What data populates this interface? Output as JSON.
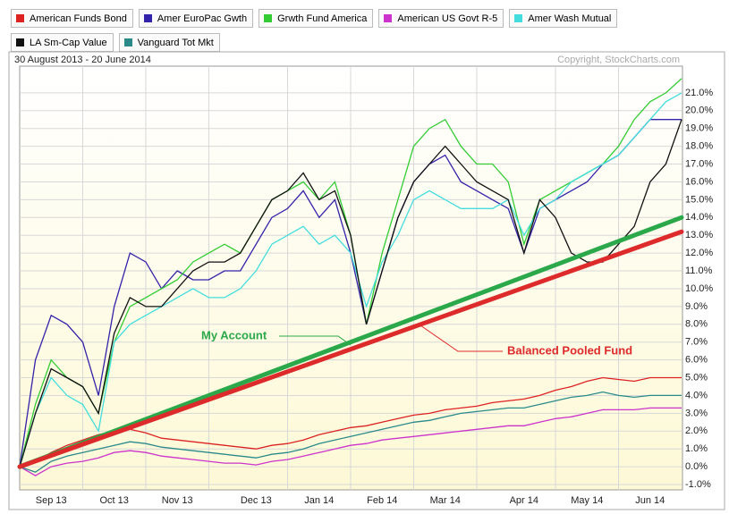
{
  "chart_data": {
    "type": "line",
    "subtitle": "30 August 2013 - 20 June 2014",
    "source": "Copyright, StockCharts.com",
    "categories": [
      null,
      null,
      "Sep 13",
      null,
      null,
      null,
      "Oct 13",
      null,
      null,
      null,
      "Nov 13",
      null,
      null,
      null,
      null,
      "Dec 13",
      null,
      null,
      null,
      "Jan 14",
      null,
      null,
      null,
      "Feb 14",
      null,
      null,
      null,
      "Mar 14",
      null,
      null,
      null,
      null,
      "Apr 14",
      null,
      null,
      null,
      "May 14",
      null,
      null,
      null,
      "Jun 14",
      null,
      null
    ],
    "series": [
      {
        "name": "American Funds Bond",
        "color": "#dd2222",
        "values": [
          0,
          0.3,
          0.8,
          1.2,
          1.5,
          1.8,
          2.0,
          2.1,
          1.9,
          1.6,
          1.5,
          1.4,
          1.3,
          1.2,
          1.1,
          1.0,
          1.2,
          1.3,
          1.5,
          1.8,
          2.0,
          2.2,
          2.3,
          2.5,
          2.7,
          2.9,
          3.0,
          3.2,
          3.3,
          3.4,
          3.6,
          3.7,
          3.8,
          4.0,
          4.3,
          4.5,
          4.8,
          5.0,
          4.9,
          4.8,
          5.0,
          5.0,
          5.0
        ]
      },
      {
        "name": "Amer EuroPac Gwth",
        "color": "#3322aa",
        "values": [
          0,
          6,
          8.5,
          8,
          7,
          4,
          9,
          12,
          11.5,
          10,
          11,
          10.5,
          10.5,
          11,
          11,
          12.5,
          14,
          14.5,
          15.5,
          14,
          15,
          12,
          8,
          11,
          14,
          16,
          17,
          17.5,
          16,
          15.5,
          15,
          14.5,
          12,
          14.5,
          15,
          15.5,
          16,
          17,
          17.5,
          18.5,
          19.5,
          19.5,
          19.5
        ]
      },
      {
        "name": "Grwth Fund America",
        "color": "#33cc33",
        "values": [
          0,
          3.5,
          6,
          5,
          4.5,
          3,
          7,
          9,
          9.5,
          10,
          10.5,
          11.5,
          12,
          12.5,
          12,
          13.5,
          15,
          15.5,
          16,
          15,
          16,
          13,
          8,
          12,
          15,
          18,
          19,
          19.5,
          18,
          17,
          17,
          16,
          12.5,
          15,
          15.5,
          16,
          16.5,
          17,
          18,
          19.5,
          20.5,
          21,
          21.8
        ]
      },
      {
        "name": "American US Govt R-5",
        "color": "#cc33cc",
        "values": [
          0,
          -0.5,
          0,
          0.2,
          0.3,
          0.5,
          0.8,
          0.9,
          0.8,
          0.6,
          0.5,
          0.4,
          0.3,
          0.2,
          0.2,
          0.1,
          0.3,
          0.4,
          0.6,
          0.8,
          1.0,
          1.2,
          1.3,
          1.5,
          1.6,
          1.7,
          1.8,
          1.9,
          2.0,
          2.1,
          2.2,
          2.3,
          2.3,
          2.5,
          2.7,
          2.8,
          3.0,
          3.2,
          3.2,
          3.2,
          3.3,
          3.3,
          3.3
        ]
      },
      {
        "name": "Amer Wash Mutual",
        "color": "#44dddd",
        "values": [
          0,
          3,
          5,
          4,
          3.5,
          2,
          7,
          8,
          8.5,
          9,
          9.5,
          10,
          9.5,
          9.5,
          10,
          11,
          12.5,
          13,
          13.5,
          12.5,
          13,
          12,
          9,
          11.5,
          13,
          15,
          15.5,
          15,
          14.5,
          14.5,
          14.5,
          15,
          13,
          14.5,
          15,
          16,
          16.5,
          17,
          17.5,
          18.5,
          19.5,
          20.5,
          21
        ]
      },
      {
        "name": "LA Sm-Cap Value",
        "color": "#111111",
        "values": [
          0,
          3,
          5.5,
          5,
          4.5,
          3,
          7.5,
          9.5,
          9,
          9,
          10,
          11,
          11.5,
          11.5,
          12,
          13.5,
          15,
          15.5,
          16.5,
          15,
          15.5,
          13,
          8,
          11,
          14,
          16,
          17,
          18,
          17,
          16,
          15.5,
          15,
          12,
          15,
          14,
          12,
          11.5,
          11.5,
          12.5,
          13.5,
          16,
          17,
          19.5
        ]
      },
      {
        "name": "Vanguard Tot Mkt",
        "color": "#2a8a8a",
        "values": [
          0,
          -0.3,
          0.3,
          0.6,
          0.8,
          1.0,
          1.2,
          1.4,
          1.3,
          1.1,
          1.0,
          0.9,
          0.8,
          0.7,
          0.6,
          0.5,
          0.7,
          0.8,
          1.0,
          1.3,
          1.5,
          1.7,
          1.9,
          2.1,
          2.3,
          2.5,
          2.6,
          2.8,
          3.0,
          3.1,
          3.2,
          3.3,
          3.3,
          3.5,
          3.7,
          3.9,
          4.0,
          4.2,
          4.0,
          3.9,
          4.0,
          4.0,
          4.0
        ]
      }
    ],
    "trend_lines": [
      {
        "name": "My Account",
        "color": "#2aa84a",
        "values": [
          0,
          14.0
        ]
      },
      {
        "name": "Balanced Pooled Fund",
        "color": "#dd2a2a",
        "values": [
          0,
          13.2
        ]
      }
    ],
    "ylim": [
      -1.3,
      22.5
    ],
    "yticks": [
      {
        "value": -1,
        "label": "-1.0%"
      },
      {
        "value": 0,
        "label": "0.0%"
      },
      {
        "value": 1,
        "label": "1.0%"
      },
      {
        "value": 2,
        "label": "2.0%"
      },
      {
        "value": 3,
        "label": "3.0%"
      },
      {
        "value": 4,
        "label": "4.0%"
      },
      {
        "value": 5,
        "label": "5.0%"
      },
      {
        "value": 6,
        "label": "6.0%"
      },
      {
        "value": 7,
        "label": "7.0%"
      },
      {
        "value": 8,
        "label": "8.0%"
      },
      {
        "value": 9,
        "label": "9.0%"
      },
      {
        "value": 10,
        "label": "10.0%"
      },
      {
        "value": 11,
        "label": "11.0%"
      },
      {
        "value": 12,
        "label": "12.0%"
      },
      {
        "value": 13,
        "label": "13.0%"
      },
      {
        "value": 14,
        "label": "14.0%"
      },
      {
        "value": 15,
        "label": "15.0%"
      },
      {
        "value": 16,
        "label": "16.0%"
      },
      {
        "value": 17,
        "label": "17.0%"
      },
      {
        "value": 18,
        "label": "18.0%"
      },
      {
        "value": 19,
        "label": "19.0%"
      },
      {
        "value": 20,
        "label": "20.0%"
      },
      {
        "value": 21,
        "label": "21.0%"
      }
    ],
    "grid": true
  }
}
